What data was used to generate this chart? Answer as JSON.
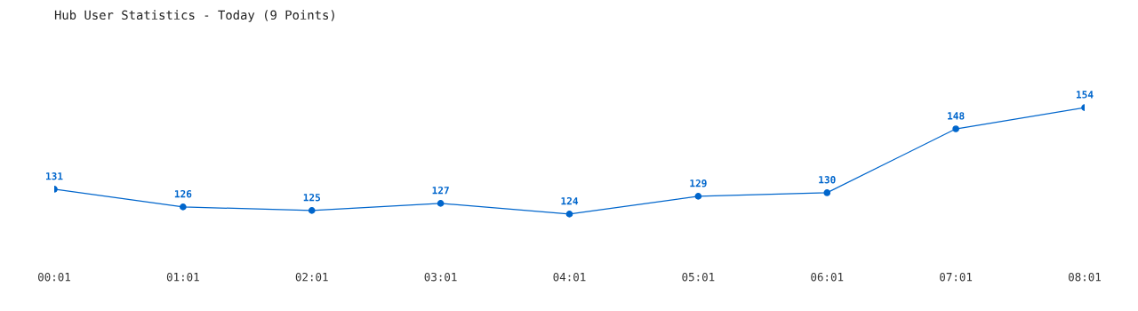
{
  "chart_data": {
    "type": "line",
    "title": "Hub User Statistics - Today (9 Points)",
    "categories": [
      "00:01",
      "01:01",
      "02:01",
      "03:01",
      "04:01",
      "05:01",
      "06:01",
      "07:01",
      "08:01"
    ],
    "series": [
      {
        "color": "#0066cc",
        "values": [
          131,
          126,
          125,
          127,
          124,
          129,
          130,
          148,
          154
        ]
      }
    ],
    "data_labels": true,
    "marker": "circle",
    "line_style": "solid",
    "grid": false,
    "legend": false
  }
}
